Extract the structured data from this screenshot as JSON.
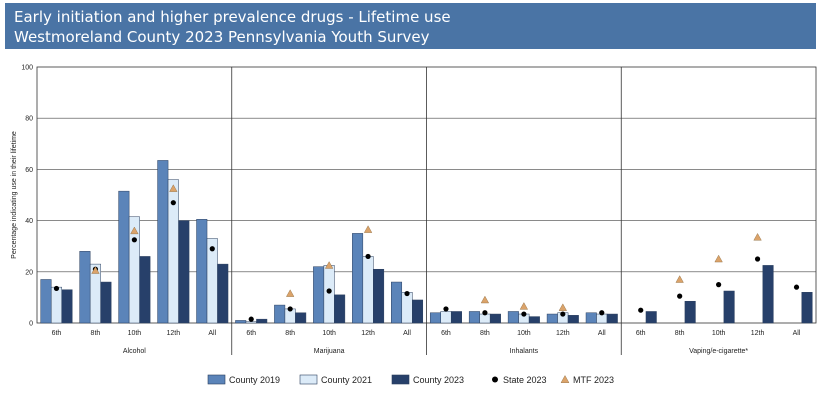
{
  "header": {
    "title_line1": "Early initiation and higher prevalence drugs - Lifetime use",
    "title_line2": "Westmoreland County 2023 Pennsylvania Youth Survey"
  },
  "chart_data": {
    "type": "bar",
    "title": "Early initiation and higher prevalence drugs - Lifetime use",
    "subtitle": "Westmoreland County 2023 Pennsylvania Youth Survey",
    "ylabel": "Percentage indicating use in their lifetime",
    "xlabel": "",
    "ylim": [
      0,
      100
    ],
    "yticks": [
      0,
      20,
      40,
      60,
      80,
      100
    ],
    "grid": true,
    "legend_position": "bottom",
    "colors": {
      "County 2019": "#5b84b9",
      "County 2021": "#dcebf8",
      "County 2023": "#27406a",
      "State 2023": "#000000",
      "MTF 2023": "#dba36a"
    },
    "groups": [
      {
        "name": "Alcohol",
        "categories": [
          "6th",
          "8th",
          "10th",
          "12th",
          "All"
        ],
        "series": [
          {
            "name": "County 2019",
            "values": [
              17,
              28,
              51.5,
              63.5,
              40.5
            ]
          },
          {
            "name": "County 2021",
            "values": [
              14,
              23,
              41.5,
              56,
              33
            ]
          },
          {
            "name": "County 2023",
            "values": [
              13,
              16,
              26,
              40,
              23
            ]
          }
        ],
        "markers": [
          {
            "name": "State 2023",
            "values": [
              13.5,
              21,
              32.5,
              47,
              29
            ]
          },
          {
            "name": "MTF 2023",
            "values": [
              null,
              20.5,
              36,
              52.5,
              null
            ]
          }
        ]
      },
      {
        "name": "Marijuana",
        "categories": [
          "6th",
          "8th",
          "10th",
          "12th",
          "All"
        ],
        "series": [
          {
            "name": "County 2019",
            "values": [
              1,
              7,
              22,
              35,
              16
            ]
          },
          {
            "name": "County 2021",
            "values": [
              0.5,
              5.5,
              22.5,
              26,
              12
            ]
          },
          {
            "name": "County 2023",
            "values": [
              1.5,
              4,
              11,
              21,
              9
            ]
          }
        ],
        "markers": [
          {
            "name": "State 2023",
            "values": [
              1.5,
              5.5,
              12.5,
              26,
              11.5
            ]
          },
          {
            "name": "MTF 2023",
            "values": [
              null,
              11.5,
              22.5,
              36.5,
              null
            ]
          }
        ]
      },
      {
        "name": "Inhalants",
        "categories": [
          "6th",
          "8th",
          "10th",
          "12th",
          "All"
        ],
        "series": [
          {
            "name": "County 2019",
            "values": [
              4,
              4.5,
              4.5,
              3.5,
              4
            ]
          },
          {
            "name": "County 2021",
            "values": [
              4.5,
              3.5,
              3.5,
              4,
              3.5
            ]
          },
          {
            "name": "County 2023",
            "values": [
              4.5,
              3.5,
              2.5,
              3,
              3.5
            ]
          }
        ],
        "markers": [
          {
            "name": "State 2023",
            "values": [
              5.5,
              4,
              3.5,
              3.5,
              4
            ]
          },
          {
            "name": "MTF 2023",
            "values": [
              null,
              9,
              6.5,
              6,
              null
            ]
          }
        ]
      },
      {
        "name": "Vaping/e-cigarette*",
        "categories": [
          "6th",
          "8th",
          "10th",
          "12th",
          "All"
        ],
        "series": [
          {
            "name": "County 2019",
            "values": [
              null,
              null,
              null,
              null,
              null
            ]
          },
          {
            "name": "County 2021",
            "values": [
              null,
              null,
              null,
              null,
              null
            ]
          },
          {
            "name": "County 2023",
            "values": [
              4.5,
              8.5,
              12.5,
              22.5,
              12
            ]
          }
        ],
        "markers": [
          {
            "name": "State 2023",
            "values": [
              5,
              10.5,
              15,
              25,
              14
            ]
          },
          {
            "name": "MTF 2023",
            "values": [
              null,
              17,
              25,
              33.5,
              null
            ]
          }
        ]
      }
    ]
  }
}
